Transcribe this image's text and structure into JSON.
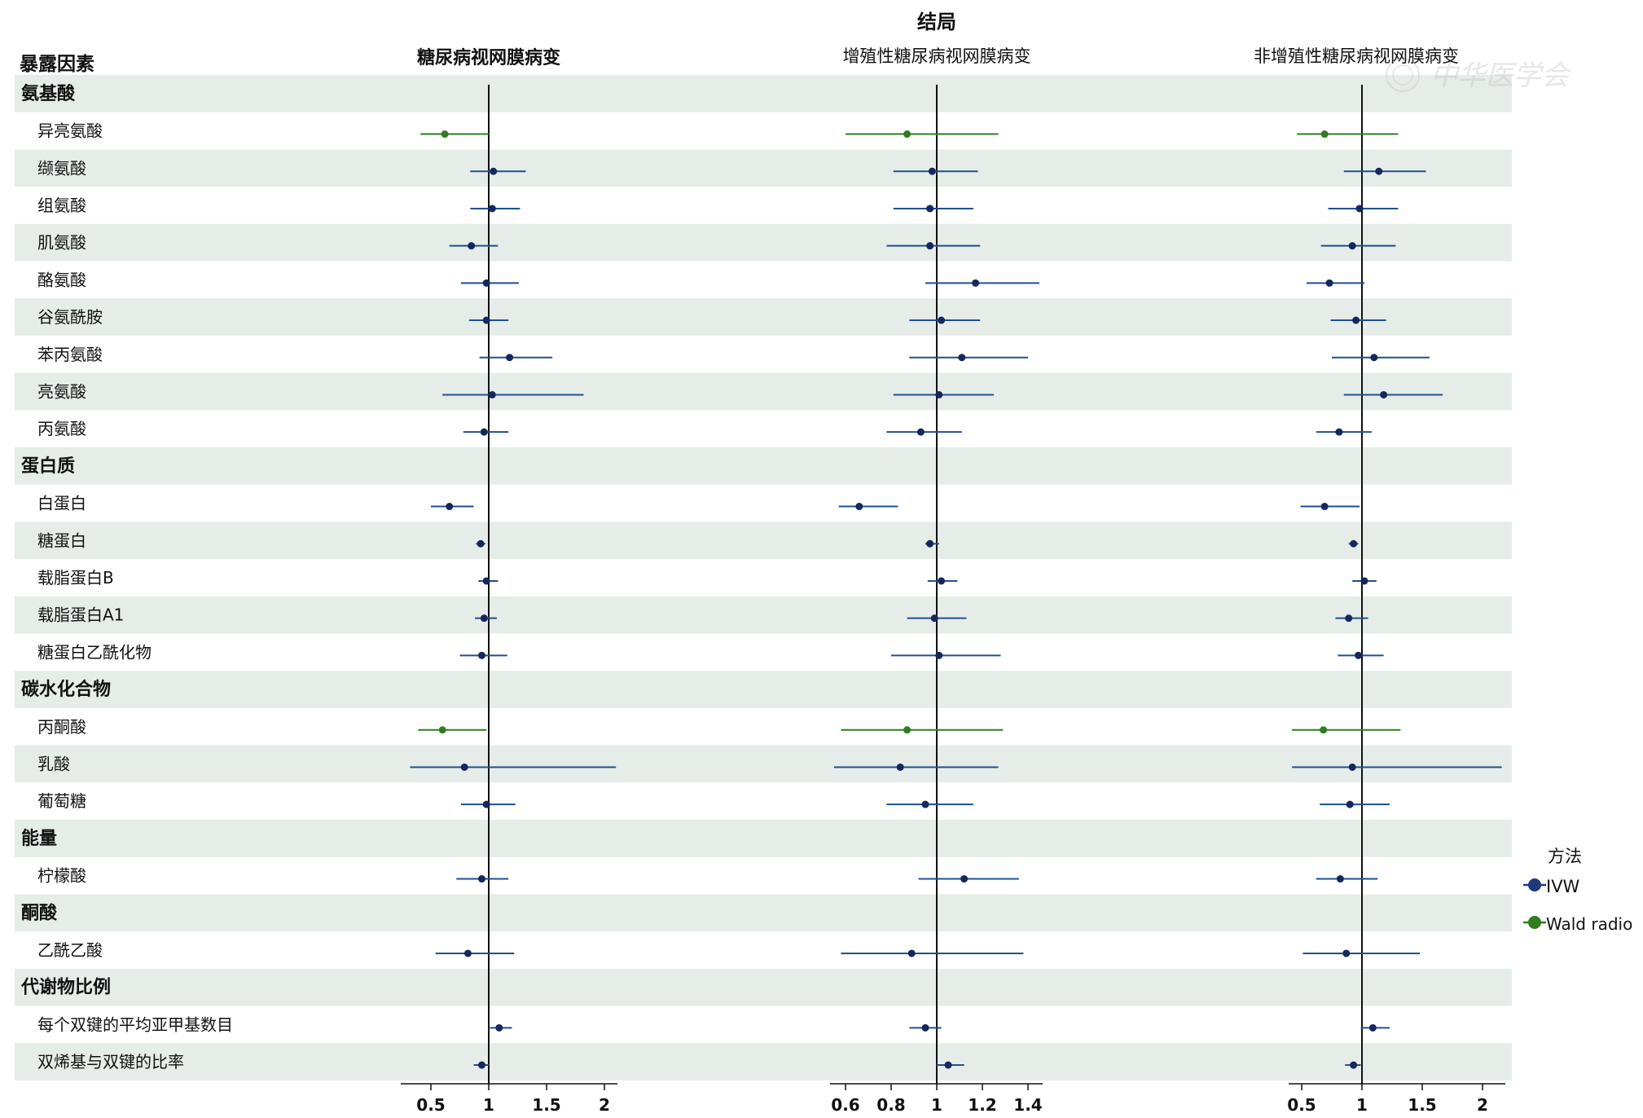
{
  "watermark": "中华医学会",
  "chart_data": {
    "type": "forest",
    "title": "结局",
    "row_header": "暴露因素",
    "columns": [
      {
        "title": "糖尿病视网膜病变",
        "ticks": [
          0.5,
          1,
          1.5,
          2
        ],
        "tick_labels": [
          "0.5",
          "1",
          "1.5",
          "2"
        ],
        "xlim": [
          0.3,
          2.1
        ],
        "null_line": 1
      },
      {
        "title": "增殖性糖尿病视网膜病变",
        "ticks": [
          0.6,
          0.8,
          1,
          1.2,
          1.4
        ],
        "tick_labels": [
          "0.6",
          "0.8",
          "1",
          "1.2",
          "1.4"
        ],
        "xlim": [
          0.53,
          1.44
        ],
        "null_line": 1
      },
      {
        "title": "非增殖性糖尿病视网膜病变",
        "ticks": [
          0.5,
          1,
          1.5,
          2
        ],
        "tick_labels": [
          "0.5",
          "1",
          "1.5",
          "2"
        ],
        "xlim": [
          0.4,
          2.16
        ],
        "null_line": 1
      }
    ],
    "legend": {
      "title": "方法",
      "position": "right",
      "items": [
        {
          "label": "IVW",
          "color": "#1f3a7a"
        },
        {
          "label": "Wald radio",
          "color": "#2e7d1e"
        }
      ]
    },
    "line_colors": {
      "IVW": "#1f4f8f",
      "Wald radio": "#2e7d1e"
    },
    "dot_colors": {
      "IVW": "#14275e",
      "Wald radio": "#2e7d1e"
    },
    "rows": [
      {
        "label": "氨基酸",
        "group": true
      },
      {
        "label": "异亮氨酸",
        "method": "Wald radio",
        "est": [
          [
            0.62,
            0.41,
            1.0
          ],
          [
            0.87,
            0.6,
            1.27
          ],
          [
            0.69,
            0.46,
            1.3
          ]
        ]
      },
      {
        "label": "缬氨酸",
        "method": "IVW",
        "est": [
          [
            1.04,
            0.84,
            1.32
          ],
          [
            0.98,
            0.81,
            1.18
          ],
          [
            1.14,
            0.85,
            1.53
          ]
        ]
      },
      {
        "label": "组氨酸",
        "method": "IVW",
        "est": [
          [
            1.03,
            0.84,
            1.27
          ],
          [
            0.97,
            0.81,
            1.16
          ],
          [
            0.98,
            0.72,
            1.3
          ]
        ]
      },
      {
        "label": "肌氨酸",
        "method": "IVW",
        "est": [
          [
            0.85,
            0.66,
            1.08
          ],
          [
            0.97,
            0.78,
            1.19
          ],
          [
            0.92,
            0.66,
            1.28
          ]
        ]
      },
      {
        "label": "酪氨酸",
        "method": "IVW",
        "est": [
          [
            0.98,
            0.76,
            1.26
          ],
          [
            1.17,
            0.95,
            1.45
          ],
          [
            0.73,
            0.54,
            1.02
          ]
        ]
      },
      {
        "label": "谷氨酰胺",
        "method": "IVW",
        "est": [
          [
            0.98,
            0.83,
            1.17
          ],
          [
            1.02,
            0.88,
            1.19
          ],
          [
            0.95,
            0.74,
            1.2
          ]
        ]
      },
      {
        "label": "苯丙氨酸",
        "method": "IVW",
        "est": [
          [
            1.18,
            0.92,
            1.55
          ],
          [
            1.11,
            0.88,
            1.4
          ],
          [
            1.1,
            0.75,
            1.56
          ]
        ]
      },
      {
        "label": "亮氨酸",
        "method": "IVW",
        "est": [
          [
            1.03,
            0.6,
            1.82
          ],
          [
            1.01,
            0.81,
            1.25
          ],
          [
            1.18,
            0.85,
            1.67
          ]
        ]
      },
      {
        "label": "丙氨酸",
        "method": "IVW",
        "est": [
          [
            0.96,
            0.78,
            1.17
          ],
          [
            0.93,
            0.78,
            1.11
          ],
          [
            0.81,
            0.62,
            1.08
          ]
        ]
      },
      {
        "label": "蛋白质",
        "group": true
      },
      {
        "label": "白蛋白",
        "method": "IVW",
        "est": [
          [
            0.66,
            0.5,
            0.87
          ],
          [
            0.66,
            0.57,
            0.83
          ],
          [
            0.69,
            0.49,
            0.98
          ]
        ]
      },
      {
        "label": "糖蛋白",
        "method": "IVW",
        "est": [
          [
            0.93,
            0.89,
            0.97
          ],
          [
            0.97,
            0.95,
            1.01
          ],
          [
            0.93,
            0.89,
            0.97
          ]
        ]
      },
      {
        "label": "载脂蛋白B",
        "method": "IVW",
        "est": [
          [
            0.98,
            0.91,
            1.08
          ],
          [
            1.02,
            0.96,
            1.09
          ],
          [
            1.02,
            0.92,
            1.12
          ]
        ]
      },
      {
        "label": "载脂蛋白A1",
        "method": "IVW",
        "est": [
          [
            0.96,
            0.88,
            1.07
          ],
          [
            0.99,
            0.87,
            1.13
          ],
          [
            0.89,
            0.78,
            1.05
          ]
        ]
      },
      {
        "label": "糖蛋白乙酰化物",
        "method": "IVW",
        "est": [
          [
            0.94,
            0.75,
            1.16
          ],
          [
            1.01,
            0.8,
            1.28
          ],
          [
            0.97,
            0.8,
            1.18
          ]
        ]
      },
      {
        "label": "碳水化合物",
        "group": true
      },
      {
        "label": "丙酮酸",
        "method": "Wald radio",
        "est": [
          [
            0.6,
            0.39,
            0.98
          ],
          [
            0.87,
            0.58,
            1.29
          ],
          [
            0.68,
            0.42,
            1.32
          ]
        ]
      },
      {
        "label": "乳酸",
        "method": "IVW",
        "est": [
          [
            0.79,
            0.32,
            2.1
          ],
          [
            0.84,
            0.55,
            1.27
          ],
          [
            0.92,
            0.42,
            2.16
          ]
        ]
      },
      {
        "label": "葡萄糖",
        "method": "IVW",
        "est": [
          [
            0.98,
            0.76,
            1.23
          ],
          [
            0.95,
            0.78,
            1.16
          ],
          [
            0.9,
            0.65,
            1.23
          ]
        ]
      },
      {
        "label": "能量",
        "group": true
      },
      {
        "label": "柠檬酸",
        "method": "IVW",
        "est": [
          [
            0.94,
            0.72,
            1.17
          ],
          [
            1.12,
            0.92,
            1.36
          ],
          [
            0.82,
            0.62,
            1.13
          ]
        ]
      },
      {
        "label": "酮酸",
        "group": true
      },
      {
        "label": "乙酰乙酸",
        "method": "IVW",
        "est": [
          [
            0.82,
            0.54,
            1.22
          ],
          [
            0.89,
            0.58,
            1.38
          ],
          [
            0.87,
            0.51,
            1.48
          ]
        ]
      },
      {
        "label": "代谢物比例",
        "group": true
      },
      {
        "label": "每个双键的平均亚甲基数目",
        "method": "IVW",
        "est": [
          [
            1.09,
            1.01,
            1.2
          ],
          [
            0.95,
            0.88,
            1.02
          ],
          [
            1.09,
            0.99,
            1.23
          ]
        ]
      },
      {
        "label": "双烯基与双键的比率",
        "method": "IVW",
        "est": [
          [
            0.94,
            0.87,
            1.0
          ],
          [
            1.05,
            1.0,
            1.12
          ],
          [
            0.93,
            0.86,
            0.99
          ]
        ]
      }
    ]
  }
}
